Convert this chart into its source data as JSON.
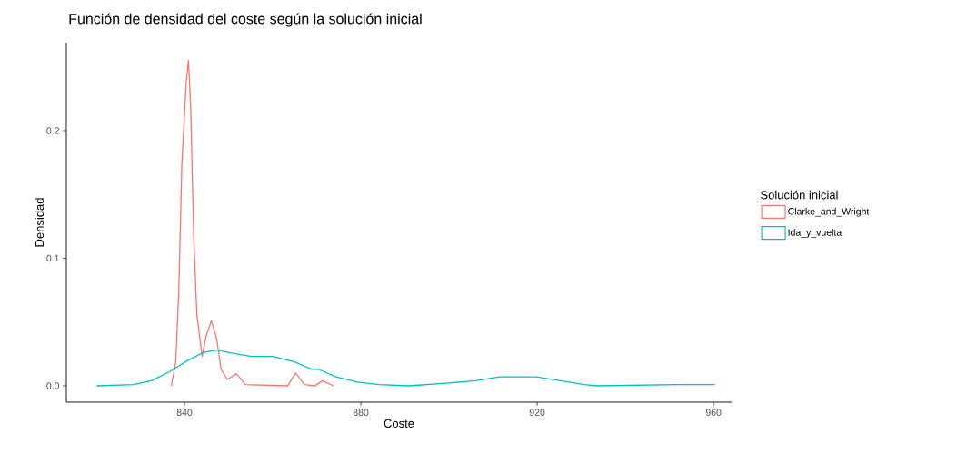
{
  "chart_data": {
    "type": "line",
    "title": "Función de densidad del coste según la solución inicial",
    "xlabel": "Coste",
    "ylabel": "Densidad",
    "legend_title": "Solución inicial",
    "legend": "right",
    "grid": false,
    "xlim": [
      813.2,
      964.1
    ],
    "ylim": [
      -0.0128,
      0.269
    ],
    "xticks": [
      840,
      880,
      920,
      960
    ],
    "yticks": [
      {
        "value": 0,
        "label": "0.0"
      },
      {
        "value": 0.1,
        "label": "0.1"
      },
      {
        "value": 0.2,
        "label": "0.2"
      }
    ],
    "series": [
      {
        "name": "Clarke_and_Wright",
        "color": "#f8766d",
        "x": [
          837.0,
          838.0,
          838.7,
          839.4,
          840.4,
          840.9,
          841.4,
          842.1,
          842.8,
          844.0,
          844.9,
          846.1,
          847.3,
          848.3,
          849.7,
          851.8,
          853.8,
          863.4,
          865.2,
          867.2,
          869.6,
          871.3,
          873.8
        ],
        "values": [
          0,
          0.018,
          0.073,
          0.174,
          0.238,
          0.255,
          0.219,
          0.117,
          0.056,
          0.023,
          0.039,
          0.051,
          0.037,
          0.013,
          0.005,
          0.0095,
          0.001,
          0,
          0.01,
          0.001,
          0,
          0.004,
          0
        ]
      },
      {
        "name": "Ida_y_vuelta",
        "color": "#00bfc4",
        "x": [
          820.1,
          828.4,
          832.5,
          836.6,
          840.8,
          844.2,
          847.3,
          851.8,
          855.2,
          860.0,
          864.8,
          868.9,
          870.3,
          874.4,
          879.2,
          884.1,
          890.9,
          899.2,
          906.0,
          911.5,
          919.8,
          925.3,
          930.7,
          933.5,
          951.4,
          960.3
        ],
        "values": [
          0,
          0.001,
          0.004,
          0.011,
          0.02,
          0.026,
          0.028,
          0.025,
          0.023,
          0.023,
          0.019,
          0.013,
          0.013,
          0.007,
          0.003,
          0.001,
          0,
          0.002,
          0.004,
          0.007,
          0.007,
          0.004,
          0.001,
          0,
          0.001,
          0.001
        ]
      }
    ]
  }
}
